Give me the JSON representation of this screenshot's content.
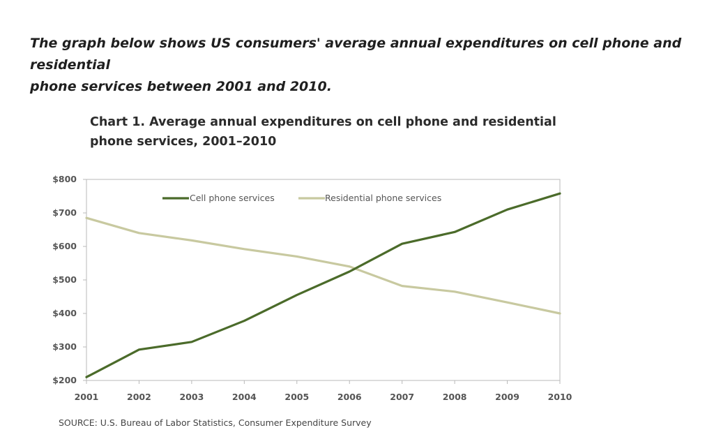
{
  "intro": {
    "line1": "The graph below shows US consumers' average annual expenditures on cell phone and residential",
    "line2": "phone services between 2001 and 2010."
  },
  "chart_data": {
    "type": "line",
    "title_line1": "Chart 1. Average annual expenditures on cell phone and residential",
    "title_line2": "phone services, 2001–2010",
    "x": [
      2001,
      2002,
      2003,
      2004,
      2005,
      2006,
      2007,
      2008,
      2009,
      2010
    ],
    "x_tick_labels": [
      "2001",
      "2002",
      "2003",
      "2004",
      "2005",
      "2006",
      "2007",
      "2008",
      "2009",
      "2010"
    ],
    "ylim": [
      200,
      800
    ],
    "y_ticks": [
      200,
      300,
      400,
      500,
      600,
      700,
      800
    ],
    "y_tick_labels": [
      "$200",
      "$300",
      "$400",
      "$500",
      "$600",
      "$700",
      "$800"
    ],
    "grid": false,
    "legend_position": "top-center",
    "series": [
      {
        "name": "Cell phone services",
        "color": "#4b6b2a",
        "values": [
          210,
          292,
          315,
          378,
          455,
          525,
          608,
          643,
          710,
          758
        ]
      },
      {
        "name": "Residential phone services",
        "color": "#c8c9a0",
        "values": [
          685,
          640,
          618,
          592,
          570,
          540,
          482,
          465,
          433,
          400
        ]
      }
    ],
    "source": "SOURCE: U.S. Bureau of Labor Statistics, Consumer Expenditure Survey"
  }
}
